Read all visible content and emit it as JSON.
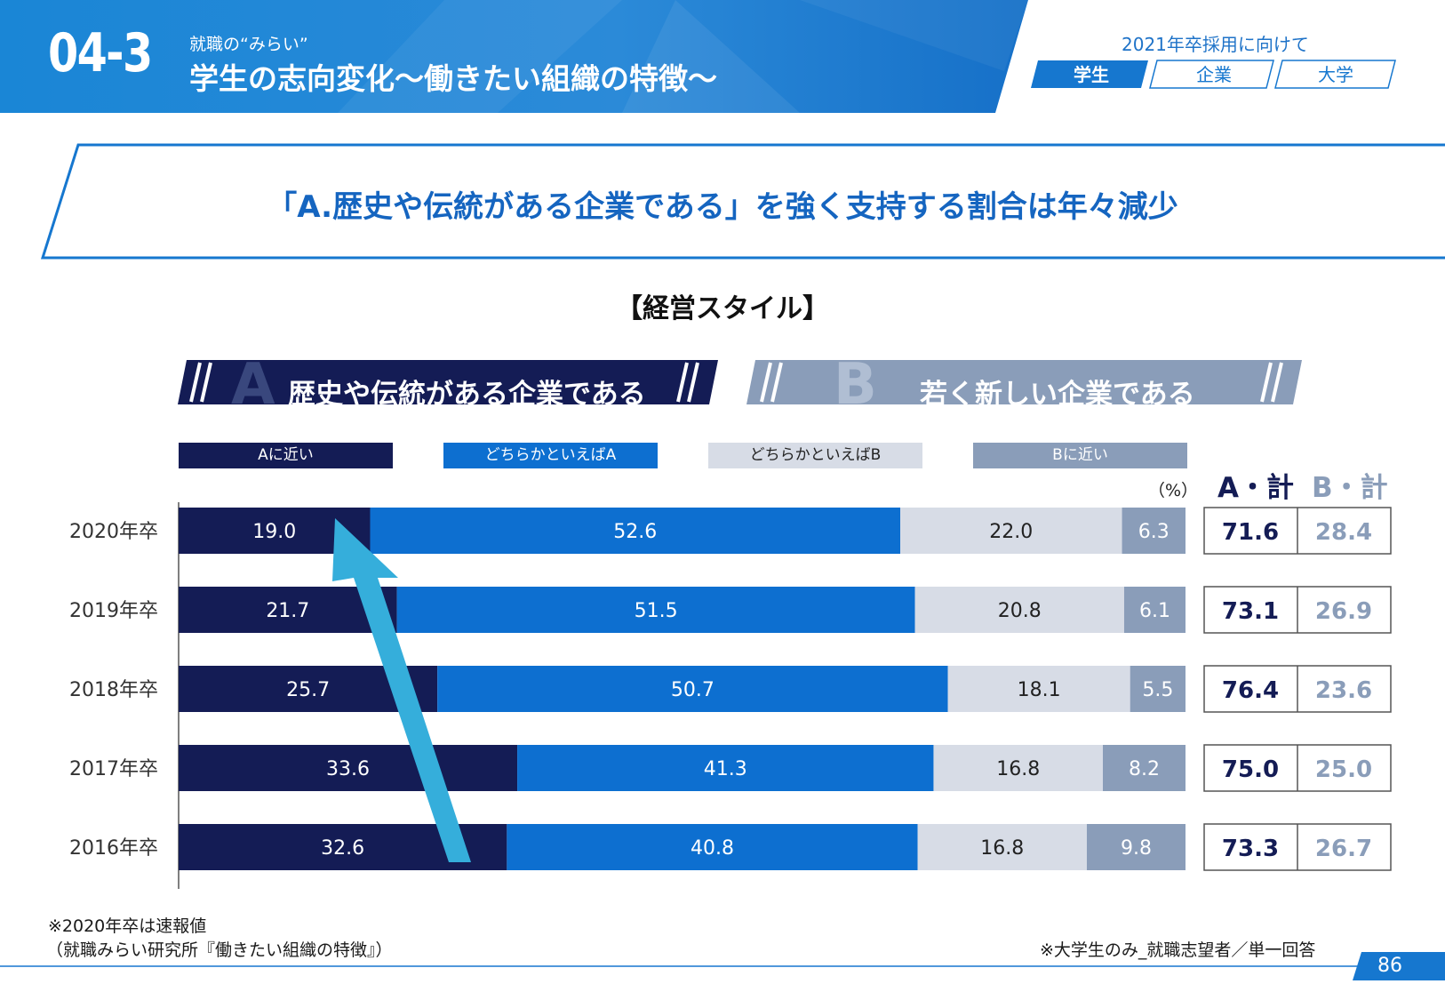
{
  "header": {
    "section_number": "04-3",
    "subtitle": "就職の“みらい”",
    "title": "学生の志向変化〜働きたい組織の特徴〜",
    "year_label": "2021年卒採用に向けて",
    "tabs": [
      {
        "label": "学生",
        "active": true
      },
      {
        "label": "企業",
        "active": false
      },
      {
        "label": "大学",
        "active": false
      }
    ]
  },
  "banner": {
    "text": "「A.歴史や伝統がある企業である」を強く支持する割合は年々減少"
  },
  "chart_heading": "【経営スタイル】",
  "options": {
    "a_letter": "A",
    "a_text": "歴史や伝統がある企業である",
    "b_letter": "B",
    "b_text": "若く新しい企業である"
  },
  "unit": "（%）",
  "totals_headers": {
    "a": "A・計",
    "b": "B・計"
  },
  "colors": {
    "a_near": "#141c55",
    "lean_a": "#0d6fd0",
    "lean_b": "#d7dce6",
    "b_near": "#8a9db9",
    "header_blue": "#1677cf",
    "arrow": "#35aedb"
  },
  "chart_data": {
    "type": "bar",
    "orientation": "horizontal-stacked-100",
    "categories": [
      "2020年卒",
      "2019年卒",
      "2018年卒",
      "2017年卒",
      "2016年卒"
    ],
    "series": [
      {
        "name": "Aに近い",
        "values": [
          19.0,
          21.7,
          25.7,
          33.6,
          32.6
        ]
      },
      {
        "name": "どちらかといえばA",
        "values": [
          52.6,
          51.5,
          50.7,
          41.3,
          40.8
        ]
      },
      {
        "name": "どちらかといえばB",
        "values": [
          22.0,
          20.8,
          18.1,
          16.8,
          16.8
        ]
      },
      {
        "name": "Bに近い",
        "values": [
          6.3,
          6.1,
          5.5,
          8.2,
          9.8
        ]
      }
    ],
    "totals": {
      "a": [
        "71.6",
        "73.1",
        "76.4",
        "75.0",
        "73.3"
      ],
      "b": [
        "28.4",
        "26.9",
        "23.6",
        "25.0",
        "26.7"
      ]
    },
    "legend_position": "top",
    "annotation": "arrow from 2016年卒 to 2020年卒 indicating decline of Aに近い"
  },
  "footnotes": {
    "note1": "※2020年卒は速報値",
    "source": "（就職みらい研究所『働きたい組織の特徴』）",
    "scope": "※大学生のみ_就職志望者／単一回答"
  },
  "page_number": "86"
}
